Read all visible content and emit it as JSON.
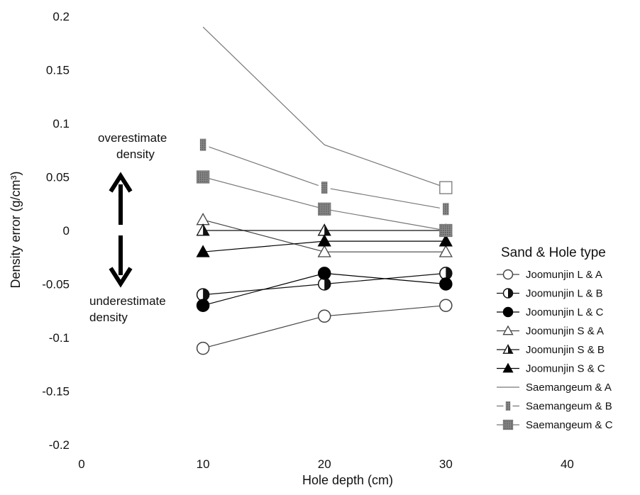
{
  "chart_data": {
    "type": "line",
    "xlabel": "Hole depth (cm)",
    "ylabel": "Density error (g/cm³)",
    "xlim": [
      0,
      45
    ],
    "ylim": [
      -0.2,
      0.2
    ],
    "x_ticks": [
      0,
      10,
      20,
      30,
      40
    ],
    "y_ticks": [
      -0.2,
      -0.15,
      -0.1,
      -0.05,
      0,
      0.05,
      0.1,
      0.15,
      0.2
    ],
    "x_tick_labels": [
      "0",
      "10",
      "20",
      "30",
      "40"
    ],
    "y_tick_labels": [
      "-0.2",
      "-0.15",
      "-0.1",
      "-0.05",
      "0",
      "0.05",
      "0.1",
      "0.15",
      "0.2"
    ],
    "grid": false,
    "legend_title": "Sand & Hole type",
    "legend_position": "right",
    "x": [
      10,
      20,
      30
    ],
    "series": [
      {
        "name": "Joomunjin L & A",
        "marker": "circle-open",
        "color": "#444444",
        "values": [
          -0.11,
          -0.08,
          -0.07
        ]
      },
      {
        "name": "Joomunjin L & B",
        "marker": "circle-half",
        "color": "#111111",
        "values": [
          -0.06,
          -0.05,
          -0.04
        ]
      },
      {
        "name": "Joomunjin L & C",
        "marker": "circle-filled",
        "color": "#000000",
        "values": [
          -0.07,
          -0.04,
          -0.05
        ]
      },
      {
        "name": "Joomunjin S & A",
        "marker": "triangle-open",
        "color": "#444444",
        "values": [
          0.01,
          -0.02,
          -0.02
        ]
      },
      {
        "name": "Joomunjin S & B",
        "marker": "triangle-half",
        "color": "#111111",
        "values": [
          0.0,
          0.0,
          0.0
        ]
      },
      {
        "name": "Joomunjin S & C",
        "marker": "triangle-filled",
        "color": "#000000",
        "values": [
          -0.02,
          -0.01,
          -0.01
        ]
      },
      {
        "name": "Saemangeum & A",
        "marker": "square-open",
        "color": "#777777",
        "values": [
          0.19,
          0.08,
          0.04
        ]
      },
      {
        "name": "Saemangeum & B",
        "marker": "square-half",
        "color": "#777777",
        "values": [
          0.08,
          0.04,
          0.02
        ]
      },
      {
        "name": "Saemangeum & C",
        "marker": "square-filled",
        "color": "#777777",
        "values": [
          0.05,
          0.02,
          0.0
        ]
      }
    ],
    "annotations": {
      "overestimate_line1": "overestimate",
      "overestimate_line2": "density",
      "underestimate_line1": "underestimate",
      "underestimate_line2": "density"
    }
  }
}
